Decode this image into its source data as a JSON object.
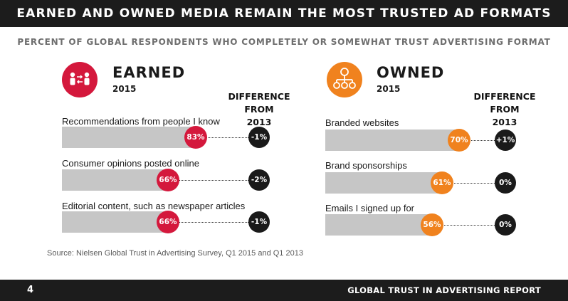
{
  "header": {
    "title": "EARNED AND OWNED MEDIA REMAIN THE MOST TRUSTED AD FORMATS"
  },
  "subtitle": "PERCENT OF GLOBAL RESPONDENTS WHO COMPLETELY OR SOMEWHAT TRUST ADVERTISING FORMAT",
  "colors": {
    "earned": "#d4183c",
    "owned": "#f0821e",
    "bar_track": "#c6c6c6",
    "dark": "#1c1c1c"
  },
  "icons": {
    "earned": "people-exchange-icon",
    "owned": "hierarchy-network-icon"
  },
  "chart_data": [
    {
      "type": "bar",
      "title": "EARNED",
      "year": "2015",
      "difference_header": [
        "DIFFERENCE",
        "FROM",
        "2013"
      ],
      "categories": [
        "Recommendations from people I know",
        "Consumer opinions posted online",
        "Editorial content, such as newspaper articles"
      ],
      "values": [
        83,
        66,
        66
      ],
      "value_labels": [
        "83%",
        "66%",
        "66%"
      ],
      "difference": [
        -1,
        -2,
        -1
      ],
      "difference_labels": [
        "-1%",
        "-2%",
        "-1%"
      ],
      "ylim": [
        0,
        100
      ]
    },
    {
      "type": "bar",
      "title": "OWNED",
      "year": "2015",
      "difference_header": [
        "DIFFERENCE",
        "FROM",
        "2013"
      ],
      "categories": [
        "Branded websites",
        "Brand sponsorships",
        "Emails I signed up for"
      ],
      "values": [
        70,
        61,
        56
      ],
      "value_labels": [
        "70%",
        "61%",
        "56%"
      ],
      "difference": [
        1,
        0,
        0
      ],
      "difference_labels": [
        "+1%",
        "0%",
        "0%"
      ],
      "ylim": [
        0,
        100
      ]
    }
  ],
  "source": "Source: Nielsen Global Trust in Advertising Survey, Q1 2015 and Q1 2013",
  "footer": {
    "page_number": "4",
    "report_title": "GLOBAL TRUST IN ADVERTISING REPORT"
  }
}
